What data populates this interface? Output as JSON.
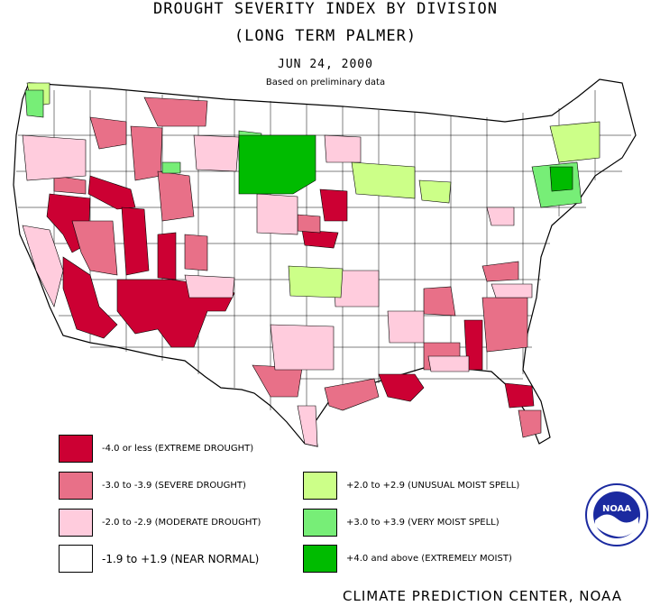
{
  "header": {
    "title": "DROUGHT SEVERITY INDEX BY DIVISION",
    "subtitle": "(LONG TERM PALMER)",
    "date": "JUN 24, 2000",
    "note": "Based on preliminary data"
  },
  "legend": [
    {
      "label": "-4.0 or less (EXTREME DROUGHT)",
      "color": "#cc0033"
    },
    {
      "label": "-3.0 to -3.9 (SEVERE DROUGHT)",
      "color": "#e87088"
    },
    {
      "label": "-2.0 to -2.9 (MODERATE DROUGHT)",
      "color": "#ffccdd"
    },
    {
      "label": "-1.9 to +1.9 (NEAR NORMAL)",
      "color": "#ffffff"
    },
    {
      "label": "+2.0 to +2.9 (UNUSUAL MOIST SPELL)",
      "color": "#ccff88"
    },
    {
      "label": "+3.0 to +3.9 (VERY MOIST SPELL)",
      "color": "#77ee77"
    },
    {
      "label": "+4.0 and above (EXTREMELY MOIST)",
      "color": "#00bb00"
    }
  ],
  "credit": "CLIMATE PREDICTION CENTER, NOAA",
  "logo": {
    "text": "NOAA",
    "icon": "noaa-logo-icon",
    "color": "#1b2aa0"
  }
}
